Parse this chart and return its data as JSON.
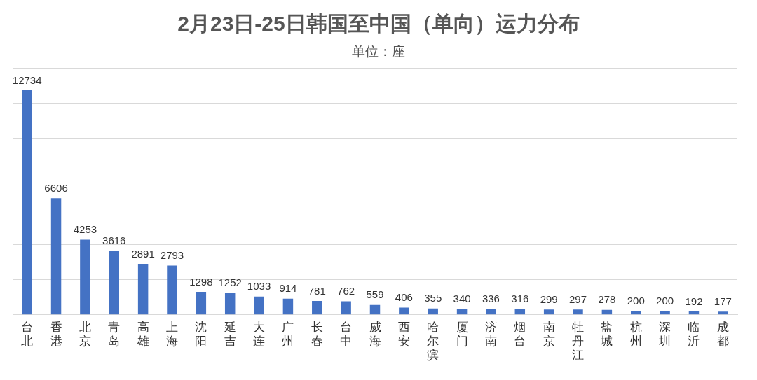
{
  "chart_data": {
    "type": "bar",
    "title": "2月23日-25日韩国至中国（单向）运力分布",
    "subtitle": "单位：座",
    "categories": [
      "台北",
      "香港",
      "北京",
      "青岛",
      "高雄",
      "上海",
      "沈阳",
      "延吉",
      "大连",
      "广州",
      "长春",
      "台中",
      "威海",
      "西安",
      "哈尔滨",
      "厦门",
      "济南",
      "烟台",
      "南京",
      "牡丹江",
      "盐城",
      "杭州",
      "深圳",
      "临沂",
      "成都"
    ],
    "values": [
      12734,
      6606,
      4253,
      3616,
      2891,
      2793,
      1298,
      1252,
      1033,
      914,
      781,
      762,
      559,
      406,
      355,
      340,
      336,
      316,
      299,
      297,
      278,
      200,
      200,
      192,
      177
    ],
    "color": "#4472c4",
    "data_labels": true,
    "grid": "y",
    "tick_labels": "x",
    "ylim": [
      0,
      14000
    ],
    "yticks": [
      {
        "value": 0,
        "label": null
      },
      {
        "value": 2000,
        "label": null
      },
      {
        "value": 4000,
        "label": null
      },
      {
        "value": 6000,
        "label": null
      },
      {
        "value": 8000,
        "label": null
      },
      {
        "value": 10000,
        "label": null
      },
      {
        "value": 12000,
        "label": null
      },
      {
        "value": 14000,
        "label": null
      }
    ]
  }
}
